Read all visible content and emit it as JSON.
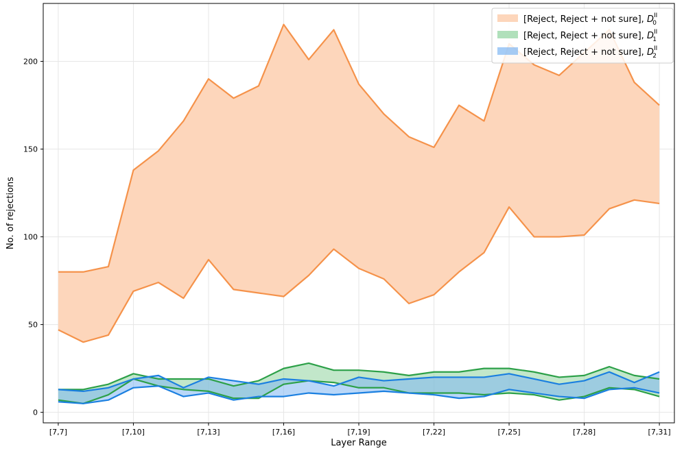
{
  "chart_data": {
    "type": "area",
    "title": "",
    "xlabel": "Layer Range",
    "ylabel": "No. of rejections",
    "categories": [
      "[7,7]",
      "[7,8]",
      "[7,9]",
      "[7,10]",
      "[7,11]",
      "[7,12]",
      "[7,13]",
      "[7,14]",
      "[7,15]",
      "[7,16]",
      "[7,17]",
      "[7,18]",
      "[7,19]",
      "[7,20]",
      "[7,21]",
      "[7,22]",
      "[7,23]",
      "[7,24]",
      "[7,25]",
      "[7,26]",
      "[7,27]",
      "[7,28]",
      "[7,29]",
      "[7,30]",
      "[7,31]"
    ],
    "x_tick_labels": [
      "[7,7]",
      "[7,10]",
      "[7,13]",
      "[7,16]",
      "[7,19]",
      "[7,22]",
      "[7,25]",
      "[7,28]",
      "[7,31]"
    ],
    "x_tick_indices": [
      0,
      3,
      6,
      9,
      12,
      15,
      18,
      21,
      24
    ],
    "y_ticks": [
      0,
      50,
      100,
      150,
      200
    ],
    "ylim": [
      -6,
      233
    ],
    "grid": true,
    "legend_position": "top-right",
    "series": [
      {
        "legend_main": "[Reject, Reject + not sure], ",
        "legend_math_base": "D",
        "legend_math_sub": "0",
        "legend_math_sup": "II",
        "line_color": "#f5924a",
        "fill_color": "#fdd6bb",
        "lower": [
          47,
          40,
          44,
          69,
          74,
          65,
          87,
          70,
          68,
          66,
          78,
          93,
          82,
          76,
          62,
          67,
          80,
          91,
          117,
          100,
          100,
          101,
          116,
          121,
          119
        ],
        "upper": [
          80,
          80,
          83,
          138,
          149,
          166,
          190,
          179,
          186,
          221,
          201,
          218,
          187,
          170,
          157,
          151,
          175,
          166,
          210,
          198,
          192,
          205,
          218,
          188,
          175
        ]
      },
      {
        "legend_main": "[Reject, Reject + not sure], ",
        "legend_math_base": "D",
        "legend_math_sub": "1",
        "legend_math_sup": "II",
        "line_color": "#2ca048",
        "fill_color": "#8fd39e",
        "lower": [
          7,
          5,
          10,
          19,
          15,
          13,
          12,
          8,
          8,
          16,
          18,
          17,
          14,
          14,
          11,
          11,
          11,
          10,
          11,
          10,
          7,
          9,
          14,
          13,
          9
        ],
        "upper": [
          13,
          13,
          16,
          22,
          19,
          19,
          19,
          15,
          18,
          25,
          28,
          24,
          24,
          23,
          21,
          23,
          23,
          25,
          25,
          23,
          20,
          21,
          26,
          21,
          19
        ]
      },
      {
        "legend_main": "[Reject, Reject + not sure], ",
        "legend_math_base": "D",
        "legend_math_sub": "2",
        "legend_math_sup": "II",
        "line_color": "#1a7fe0",
        "fill_color": "#7fb6f2",
        "lower": [
          6,
          5,
          7,
          14,
          15,
          9,
          11,
          7,
          9,
          9,
          11,
          10,
          11,
          12,
          11,
          10,
          8,
          9,
          13,
          11,
          9,
          8,
          13,
          14,
          11
        ],
        "upper": [
          13,
          12,
          14,
          19,
          21,
          14,
          20,
          18,
          16,
          19,
          18,
          15,
          20,
          18,
          19,
          20,
          20,
          20,
          22,
          19,
          16,
          18,
          23,
          17,
          23
        ]
      }
    ]
  }
}
